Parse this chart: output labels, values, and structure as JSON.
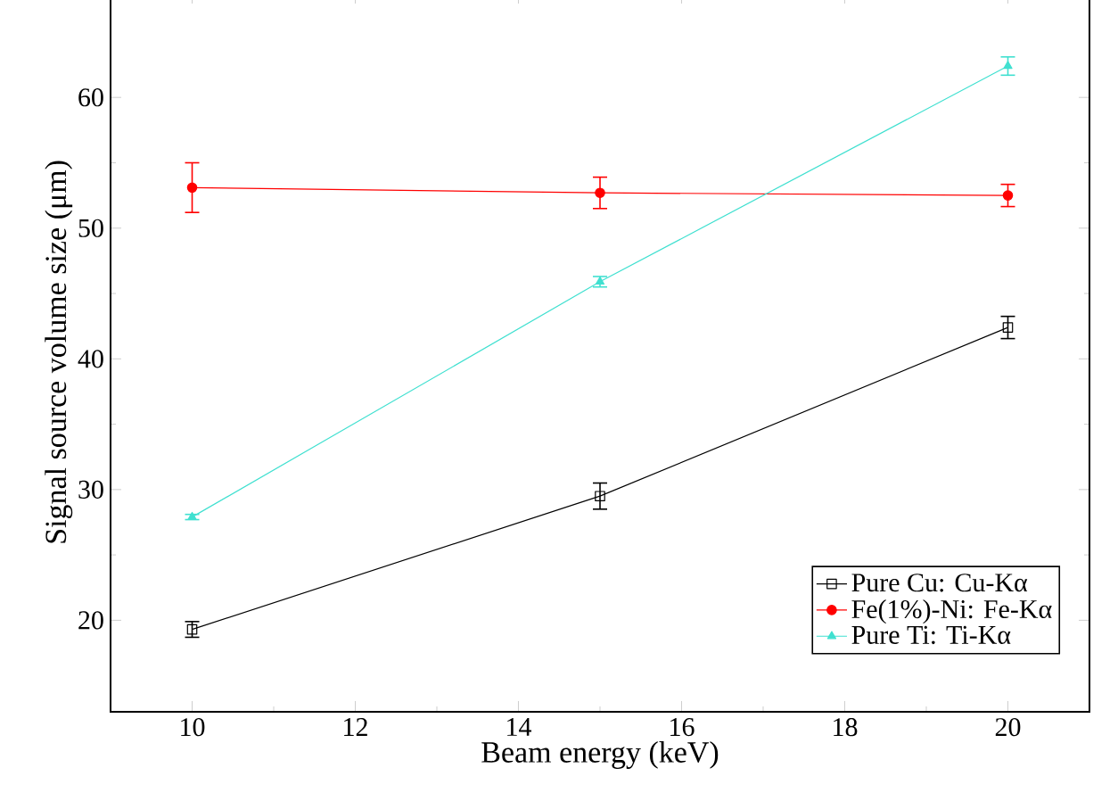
{
  "chart_data": {
    "type": "line",
    "xlabel": "Beam energy (keV)",
    "ylabel": "Signal source volume size (μm)",
    "x": [
      10,
      15,
      20
    ],
    "series": [
      {
        "name": "Pure Cu: Cu-Kα",
        "color": "#000000",
        "marker": "square",
        "values": [
          19.3,
          29.5,
          42.4
        ],
        "errors": [
          0.6,
          1.0,
          0.85
        ]
      },
      {
        "name": "Fe(1%)-Ni: Fe-Kα",
        "color": "#ff0000",
        "marker": "circle",
        "values": [
          53.1,
          52.7,
          52.5
        ],
        "errors": [
          1.9,
          1.2,
          0.85
        ]
      },
      {
        "name": "Pure Ti: Ti-Kα",
        "color": "#40e0d0",
        "marker": "triangle",
        "values": [
          27.9,
          45.9,
          62.4
        ],
        "errors": [
          0.2,
          0.4,
          0.7
        ]
      }
    ],
    "xlim": [
      9,
      21
    ],
    "ylim": [
      13,
      68
    ],
    "xticks": [
      10,
      12,
      14,
      16,
      18,
      20
    ],
    "yticks": [
      20,
      30,
      40,
      50,
      60
    ],
    "grid": false,
    "legend": "bottom right"
  }
}
